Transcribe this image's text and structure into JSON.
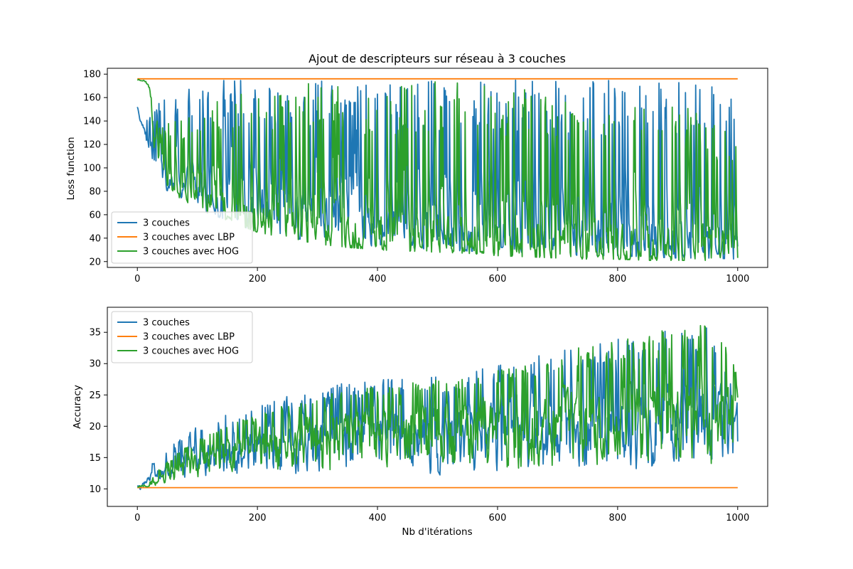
{
  "chart_data": [
    {
      "type": "line",
      "title": "Ajout de descripteurs sur réseau à 3 couches",
      "xlabel": "",
      "ylabel": "Loss function",
      "xlim": [
        -50,
        1050
      ],
      "ylim": [
        15,
        185
      ],
      "xticks": [
        0,
        200,
        400,
        600,
        800,
        1000
      ],
      "yticks": [
        20,
        40,
        60,
        80,
        100,
        120,
        140,
        160,
        180
      ],
      "grid": false,
      "legend": "lower-left",
      "series": [
        {
          "name": "3 couches",
          "color": "#1f77b4",
          "pattern": "oscillating",
          "x": [
            0,
            5,
            10,
            20,
            30,
            50,
            80,
            100,
            150,
            200,
            250,
            300,
            350,
            400,
            450,
            500,
            550,
            600,
            650,
            700,
            750,
            800,
            850,
            900,
            950,
            1000
          ],
          "mean": [
            152,
            138,
            135,
            115,
            105,
            92,
            85,
            80,
            70,
            62,
            58,
            55,
            52,
            50,
            47,
            45,
            43,
            41,
            40,
            38,
            37,
            36,
            35,
            34,
            33,
            32
          ],
          "low": [
            152,
            135,
            132,
            100,
            95,
            80,
            70,
            65,
            55,
            45,
            40,
            38,
            35,
            33,
            32,
            30,
            29,
            28,
            28,
            26,
            25,
            25,
            24,
            23,
            23,
            22
          ],
          "high": [
            153,
            140,
            140,
            150,
            160,
            165,
            170,
            172,
            175,
            175,
            175,
            175,
            175,
            175,
            175,
            175,
            175,
            175,
            175,
            175,
            175,
            175,
            175,
            175,
            175,
            175
          ]
        },
        {
          "name": "3 couches avec LBP",
          "color": "#ff7f0e",
          "pattern": "flat",
          "x": [
            0,
            1000
          ],
          "mean": [
            176,
            176
          ],
          "low": [
            176,
            176
          ],
          "high": [
            176,
            176
          ]
        },
        {
          "name": "3 couches avec HOG",
          "color": "#2ca02c",
          "pattern": "oscillating",
          "x": [
            0,
            10,
            20,
            30,
            50,
            80,
            100,
            150,
            200,
            250,
            300,
            350,
            400,
            450,
            500,
            550,
            600,
            650,
            700,
            750,
            800,
            850,
            900,
            950,
            1000
          ],
          "mean": [
            175,
            174,
            170,
            120,
            90,
            82,
            78,
            65,
            55,
            50,
            45,
            42,
            40,
            38,
            36,
            34,
            33,
            32,
            31,
            30,
            30,
            29,
            29,
            28,
            28
          ],
          "low": [
            175,
            174,
            165,
            95,
            75,
            70,
            65,
            55,
            45,
            40,
            35,
            32,
            30,
            29,
            28,
            27,
            25,
            24,
            23,
            22,
            22,
            21,
            21,
            21,
            20
          ],
          "high": [
            176,
            175,
            172,
            140,
            140,
            145,
            150,
            165,
            170,
            172,
            172,
            172,
            174,
            174,
            174,
            174,
            174,
            170,
            165,
            160,
            160,
            160,
            160,
            155,
            120
          ]
        }
      ]
    },
    {
      "type": "line",
      "title": "",
      "xlabel": "Nb d'itérations",
      "ylabel": "Accuracy",
      "xlim": [
        -50,
        1050
      ],
      "ylim": [
        7.2,
        39
      ],
      "xticks": [
        0,
        200,
        400,
        600,
        800,
        1000
      ],
      "yticks": [
        10,
        15,
        20,
        25,
        30,
        35
      ],
      "grid": false,
      "legend": "upper-left",
      "series": [
        {
          "name": "3 couches",
          "color": "#1f77b4",
          "pattern": "oscillating",
          "x": [
            0,
            5,
            10,
            20,
            30,
            50,
            100,
            150,
            200,
            250,
            300,
            350,
            400,
            450,
            500,
            550,
            600,
            650,
            700,
            750,
            800,
            850,
            900,
            950,
            1000
          ],
          "mean": [
            10.5,
            10,
            11,
            12,
            12.5,
            13.5,
            15.5,
            17,
            18,
            18.5,
            19,
            19.5,
            19.5,
            19.5,
            20,
            20.5,
            21,
            21,
            21.5,
            22,
            22,
            22.5,
            22.5,
            23,
            23
          ],
          "low": [
            10.5,
            8.5,
            10.5,
            11,
            11,
            11,
            10.5,
            10.5,
            10.5,
            10.5,
            10.5,
            10.5,
            10.5,
            10.5,
            10.5,
            10.5,
            10.5,
            10.5,
            10.5,
            10.5,
            10.5,
            10.5,
            10.5,
            10.5,
            10.5
          ],
          "high": [
            10.5,
            10.5,
            12,
            14,
            15,
            17,
            20,
            22,
            24,
            25,
            26,
            27,
            27.5,
            28,
            28,
            29,
            30,
            31,
            32,
            33,
            34,
            35,
            35.5,
            36,
            24
          ]
        },
        {
          "name": "3 couches avec LBP",
          "color": "#ff7f0e",
          "pattern": "flat",
          "x": [
            0,
            1000
          ],
          "mean": [
            10.2,
            10.2
          ],
          "low": [
            10.2,
            10.2
          ],
          "high": [
            10.2,
            10.2
          ]
        },
        {
          "name": "3 couches avec HOG",
          "color": "#2ca02c",
          "pattern": "oscillating",
          "x": [
            0,
            10,
            20,
            30,
            50,
            100,
            150,
            200,
            250,
            300,
            350,
            400,
            450,
            500,
            550,
            600,
            650,
            700,
            750,
            800,
            850,
            900,
            950,
            1000
          ],
          "mean": [
            10.3,
            10.4,
            10.5,
            11,
            12.5,
            15,
            17,
            18.5,
            19.5,
            20,
            20.5,
            21,
            21,
            21.5,
            22,
            22.5,
            22.5,
            23,
            23,
            23,
            23,
            23,
            23,
            23
          ],
          "low": [
            10.3,
            10.3,
            10.3,
            10.3,
            10.5,
            10.5,
            10.5,
            10.5,
            10.5,
            10.5,
            10.5,
            10.5,
            10.5,
            10.5,
            10.5,
            10.5,
            10.5,
            11,
            11,
            11,
            11,
            11,
            11,
            13
          ],
          "high": [
            10.5,
            10.6,
            11,
            12.5,
            14.5,
            18,
            20,
            22,
            24,
            25,
            26,
            26.5,
            27,
            27.5,
            28,
            29,
            30,
            31.5,
            33,
            34,
            35,
            36,
            37,
            30
          ]
        }
      ]
    }
  ]
}
